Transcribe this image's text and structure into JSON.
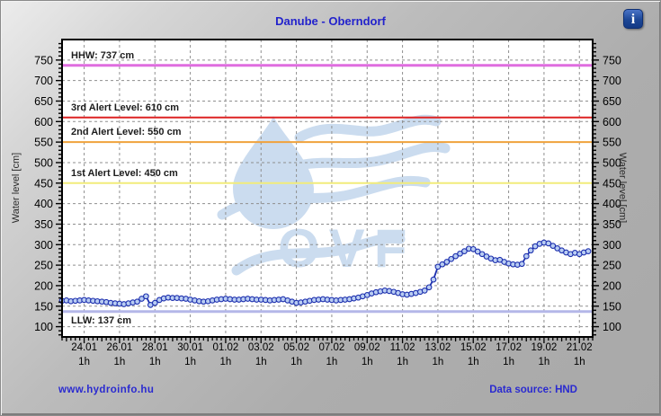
{
  "header": {
    "title": "Danube - Oberndorf",
    "info_icon": "i"
  },
  "footer": {
    "site_link": "www.hydroinfo.hu",
    "data_source": "Data source: HND"
  },
  "colors": {
    "title_blue": "#2222cc",
    "link_blue": "#2a2ad0",
    "series_line": "#1c2fae",
    "marker_fill": "#b9cdf2",
    "grid": "#8f8f8f",
    "watermark": "#cbdcef"
  },
  "chart_data": {
    "type": "line",
    "title": "Danube - Oberndorf",
    "ylabel_left": "Water level [cm]",
    "ylabel_right": "Water level [cm]",
    "ylim": [
      75,
      800
    ],
    "y_ticks": [
      100,
      150,
      200,
      250,
      300,
      350,
      400,
      450,
      500,
      550,
      600,
      650,
      700,
      750
    ],
    "x_tick_labels": [
      "24.01",
      "26.01",
      "28.01",
      "30.01",
      "01.02",
      "03.02",
      "05.02",
      "07.02",
      "09.02",
      "11.02",
      "13.02",
      "15.02",
      "17.02",
      "19.02",
      "21.02"
    ],
    "x_tick_days": [
      0,
      2,
      4,
      6,
      8,
      10,
      12,
      14,
      16,
      18,
      20,
      22,
      24,
      26,
      28
    ],
    "x_sub_label": "1h",
    "xlim_days": [
      -1.25,
      28.75
    ],
    "grid": true,
    "legend_position": "none",
    "watermark_text": "OVF",
    "reference_lines": [
      {
        "label": "HHW: 737 cm",
        "value": 737,
        "color": "#df6ddf",
        "width": 3,
        "label_below": false
      },
      {
        "label": "3rd Alert Level: 610 cm",
        "value": 610,
        "color": "#dd2222",
        "width": 2,
        "label_below": false
      },
      {
        "label": "2nd Alert Level: 550 cm",
        "value": 550,
        "color": "#f0a23c",
        "width": 2,
        "label_below": false
      },
      {
        "label": "1st Alert Level: 450 cm",
        "value": 450,
        "color": "#f2ec7a",
        "width": 2,
        "label_below": false
      },
      {
        "label": "LLW: 137 cm",
        "value": 137,
        "color": "#b4b7e8",
        "width": 3,
        "label_below": true
      }
    ],
    "series": [
      {
        "name": "water level",
        "unit": "cm",
        "x_start_day": -1.25,
        "x_step_days": 0.25,
        "values": [
          163,
          164,
          162,
          163,
          164,
          165,
          164,
          163,
          162,
          161,
          160,
          158,
          157,
          156,
          155,
          157,
          159,
          161,
          168,
          174,
          153,
          158,
          165,
          169,
          171,
          170,
          170,
          169,
          168,
          166,
          164,
          162,
          161,
          162,
          164,
          166,
          167,
          168,
          167,
          166,
          166,
          167,
          168,
          167,
          166,
          166,
          165,
          164,
          165,
          166,
          167,
          164,
          161,
          158,
          159,
          161,
          163,
          165,
          166,
          167,
          166,
          165,
          164,
          165,
          166,
          167,
          169,
          171,
          174,
          177,
          181,
          184,
          186,
          188,
          187,
          185,
          182,
          179,
          178,
          180,
          182,
          185,
          188,
          196,
          215,
          246,
          252,
          258,
          265,
          272,
          278,
          284,
          290,
          289,
          283,
          277,
          271,
          266,
          262,
          263,
          258,
          254,
          252,
          251,
          253,
          272,
          286,
          296,
          302,
          305,
          303,
          297,
          291,
          286,
          281,
          277,
          280,
          277,
          281,
          284
        ]
      }
    ]
  }
}
